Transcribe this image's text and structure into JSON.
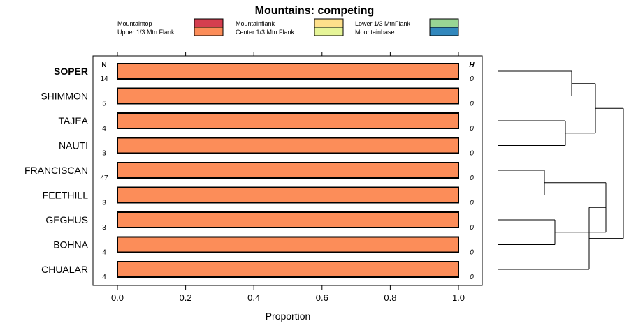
{
  "chart_data": {
    "type": "bar",
    "title": "Mountains: competing",
    "xlabel": "Proportion",
    "ylabel": "",
    "xlim": [
      0,
      1
    ],
    "xticks": [
      0.0,
      0.2,
      0.4,
      0.6,
      0.8,
      1.0
    ],
    "xtick_labels": [
      "0.0",
      "0.2",
      "0.4",
      "0.6",
      "0.8",
      "1.0"
    ],
    "n_header": "N",
    "h_header": "H",
    "legend": [
      {
        "label": "Mountaintop",
        "color": "#D53E4F"
      },
      {
        "label": "Upper 1/3 Mtn Flank",
        "color": "#FC8D59"
      },
      {
        "label": "Mountainflank",
        "color": "#FEE08B"
      },
      {
        "label": "Center 1/3 Mtn Flank",
        "color": "#E6F598"
      },
      {
        "label": "Lower 1/3 MtnFlank",
        "color": "#99D594"
      },
      {
        "label": "Mountainbase",
        "color": "#3288BD"
      }
    ],
    "categories": [
      "SOPER",
      "SHIMMON",
      "TAJEA",
      "NAUTI",
      "FRANCISCAN",
      "FEETHILL",
      "GEGHUS",
      "BOHNA",
      "CHUALAR"
    ],
    "highlighted": "SOPER",
    "n": [
      "14",
      "5",
      "4",
      "3",
      "47",
      "3",
      "3",
      "4",
      "4"
    ],
    "h": [
      "0",
      "0",
      "0",
      "0",
      "0",
      "0",
      "0",
      "0",
      "0"
    ],
    "series": [
      {
        "name": "Mountaintop",
        "values": [
          0,
          0,
          0,
          0,
          0,
          0,
          0,
          0,
          0
        ]
      },
      {
        "name": "Upper 1/3 Mtn Flank",
        "values": [
          1,
          1,
          1,
          1,
          1,
          1,
          1,
          1,
          1
        ]
      },
      {
        "name": "Mountainflank",
        "values": [
          0,
          0,
          0,
          0,
          0,
          0,
          0,
          0,
          0
        ]
      },
      {
        "name": "Center 1/3 Mtn Flank",
        "values": [
          0,
          0,
          0,
          0,
          0,
          0,
          0,
          0,
          0
        ]
      },
      {
        "name": "Lower 1/3 MtnFlank",
        "values": [
          0,
          0,
          0,
          0,
          0,
          0,
          0,
          0,
          0
        ]
      },
      {
        "name": "Mountainbase",
        "values": [
          0,
          0,
          0,
          0,
          0,
          0,
          0,
          0,
          0
        ]
      }
    ],
    "dendrogram": "hierarchical clustering of the nine rows: ((SOPER,SHIMMON),(TAJEA,NAUTI)),(((FRANCISCAN,FEETHILL),(GEGHUS,BOHNA)),CHUALAR)"
  }
}
